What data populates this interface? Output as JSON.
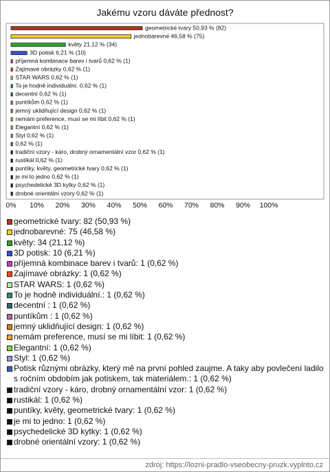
{
  "chart_data": {
    "type": "bar",
    "orientation": "horizontal",
    "title": "Jakému vzoru dáváte přednost?",
    "values": [
      50.93,
      46.58,
      21.12,
      6.21,
      0.62,
      0.62,
      0.62,
      0.62,
      0.62,
      0.62,
      0.62,
      0.62,
      0.62,
      0.62,
      0.62,
      0.62,
      0.62,
      0.62,
      0.62,
      0.62,
      0.62
    ],
    "value_labels": [
      "geometrické tvary 50,93 % (82)",
      "jednobarevné 46,58 % (75)",
      "květy 21,12 % (34)",
      "3D potisk 6,21 % (10)",
      "příjemná kombinace barev i tvarů 0,62 % (1)",
      "Zajímavé obrázky 0,62 % (1)",
      "STAR WARS 0,62 % (1)",
      "To je hodně individuální. 0,62 % (1)",
      "decentní  0,62 % (1)",
      "puntíkům  0,62 % (1)",
      "jemný uklidňující design 0,62 % (1)",
      "nemám preference, musí se mi líbit 0,62 % (1)",
      "Elegantní 0,62 % (1)",
      "Styl 0,62 % (1)",
      "0,62 % (1)",
      "tradiční vzory - káro, drobný ornamentální vzor 0,62 % (1)",
      "rustikál 0,62 % (1)",
      "puntíky, květy, geometrické tvary 0,62 % (1)",
      "je mi to jedno 0,62 % (1)",
      "psychedelické 3D kytky 0,62 % (1)",
      "drobné orientální vzory 0,62 % (1)"
    ],
    "colors": [
      "#b8321f",
      "#f2d21b",
      "#2ea82e",
      "#3a4fd0",
      "#c43ccf",
      "#f04a1e",
      "#b6e8a6",
      "#2f8a60",
      "#2f6a6a",
      "#b86aa8",
      "#e07a1e",
      "#f5a623",
      "#8fd04a",
      "#8c9ce0",
      "#3a64b8",
      "#111111",
      "#111111",
      "#111111",
      "#111111",
      "#111111",
      "#111111"
    ],
    "legend_labels": [
      "geometrické tvary: 82 (50,93 %)",
      "jednobarevné: 75 (46,58 %)",
      "květy: 34 (21,12 %)",
      "3D potisk: 10 (6,21 %)",
      "příjemná kombinace barev i tvarů: 1 (0,62 %)",
      "Zajímavé obrázky: 1 (0,62 %)",
      "STAR WARS: 1 (0,62 %)",
      "To je hodně individuální.: 1 (0,62 %)",
      "decentní : 1 (0,62 %)",
      "puntíkům : 1 (0,62 %)",
      "jemný uklidňující design: 1 (0,62 %)",
      "nemám preference, musí se mi líbit: 1 (0,62 %)",
      "Elegantní: 1 (0,62 %)",
      "Styl: 1 (0,62 %)",
      "Potisk různými obrázky, který mě na první pohled zaujme. A taky aby povlečení ladilo s ročním obdobím jak potiskem, tak materiálem.: 1 (0,62 %)",
      "tradiční vzory - káro, drobný ornamentální vzor: 1 (0,62 %)",
      "rustikál: 1 (0,62 %)",
      "puntíky, květy, geometrické tvary: 1 (0,62 %)",
      "je mi to jedno: 1 (0,62 %)",
      "psychedelické 3D kytky: 1 (0,62 %)",
      "drobné orientální vzory: 1 (0,62 %)"
    ],
    "xlim": [
      0,
      100
    ],
    "xticks": [
      {
        "value": 0,
        "label": "0%"
      },
      {
        "value": 10,
        "label": "10%"
      },
      {
        "value": 20,
        "label": "20%"
      },
      {
        "value": 30,
        "label": "30%"
      },
      {
        "value": 40,
        "label": "40%"
      },
      {
        "value": 50,
        "label": "50%"
      },
      {
        "value": 60,
        "label": "60%"
      },
      {
        "value": 70,
        "label": "70%"
      },
      {
        "value": 80,
        "label": "80%"
      },
      {
        "value": 90,
        "label": "90%"
      },
      {
        "value": 100,
        "label": "100%"
      }
    ],
    "grid": false,
    "source": "zdroj: https://lozni-pradlo-vseobecny-pruzk.vyplnto.cz"
  }
}
